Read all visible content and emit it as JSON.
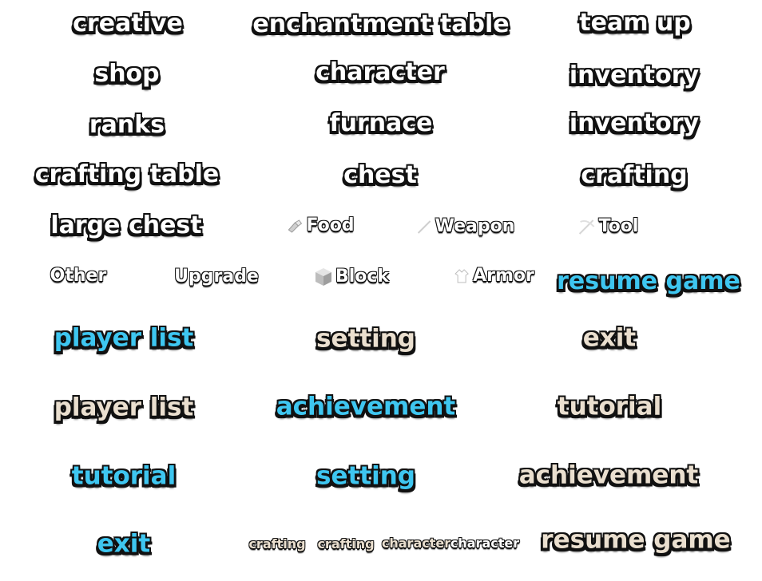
{
  "row1": {
    "creative": "creative",
    "enchant": "enchantment table",
    "teamup": "team up"
  },
  "row2": {
    "shop": "shop",
    "character": "character",
    "inventory": "inventory"
  },
  "row3": {
    "ranks": "ranks",
    "furnace": "furnace",
    "inventory": "inventory"
  },
  "row4": {
    "crafting_table": "crafting table",
    "chest": "chest",
    "crafting": "crafting"
  },
  "row5": {
    "large_chest": "large chest",
    "food": "Food",
    "weapon": "Weapon",
    "tool": "Tool"
  },
  "row6": {
    "other": "Other",
    "upgrade": "Upgrade",
    "block": "Block",
    "armor": "Armor",
    "resume": "resume game"
  },
  "row7": {
    "player_list": "player list",
    "setting": "setting",
    "exit": "exit"
  },
  "row8": {
    "player_list": "player list",
    "achievement": "achievement",
    "tutorial": "tutorial"
  },
  "row9": {
    "tutorial": "tutorial",
    "setting": "setting",
    "achievement": "achievement"
  },
  "row10": {
    "exit": "exit",
    "crafting1": "crafting",
    "crafting2": "crafting",
    "character1": "character",
    "character2": "character",
    "resume": "resume game"
  },
  "icons": [
    "food-icon",
    "sword-icon",
    "pickaxe-icon",
    "block-icon",
    "armor-icon"
  ],
  "colors": {
    "white_text": "#ffffff",
    "cyan_text": "#3ec6f0",
    "beige_text": "#eadfcf",
    "outline": "#111111",
    "background": "#ffffff"
  }
}
